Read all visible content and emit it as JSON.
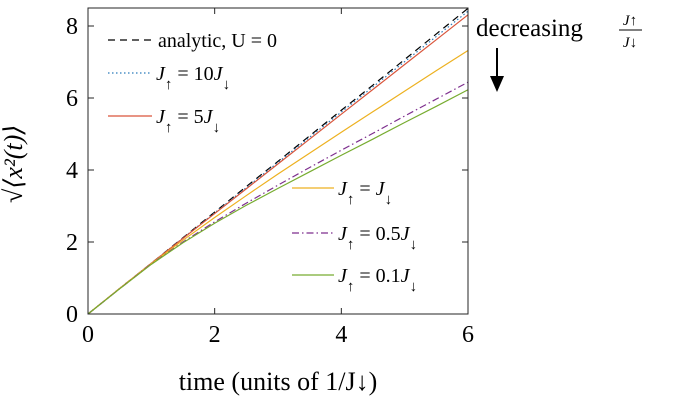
{
  "chart_data": {
    "type": "line",
    "xlabel": "time (units of 1/J↓)",
    "ylabel": "√⟨x²(t)⟩",
    "xlim": [
      0,
      6
    ],
    "ylim": [
      0,
      8.5
    ],
    "xticks": [
      0,
      2,
      4,
      6
    ],
    "yticks": [
      0,
      2,
      4,
      6,
      8
    ],
    "x_tick_labels": [
      "0",
      "2",
      "4",
      "6"
    ],
    "y_tick_labels": [
      "0",
      "2",
      "4",
      "6",
      "8"
    ],
    "grid": false,
    "legend_upper_location": "top-left",
    "legend_lower_location": "center-right",
    "x": [
      0,
      0.5,
      1,
      1.5,
      2,
      2.5,
      3,
      3.5,
      4,
      4.5,
      5,
      5.5,
      6
    ],
    "series": [
      {
        "name": "analytic, U = 0",
        "legend": {
          "a": "analytic, U = 0"
        },
        "color": "#000000",
        "dash": "dashed",
        "values": [
          0,
          0.71,
          1.41,
          2.12,
          2.83,
          3.54,
          4.24,
          4.95,
          5.66,
          6.36,
          7.07,
          7.78,
          8.49
        ]
      },
      {
        "name": "J↑ = 10J↓",
        "legend": {
          "a": "J",
          "b": "↑",
          "c": " = 10",
          "d": "J",
          "e": "↓"
        },
        "color": "#2b7bba",
        "dash": "dotted",
        "values": [
          0,
          0.71,
          1.41,
          2.11,
          2.81,
          3.51,
          4.21,
          4.91,
          5.61,
          6.31,
          7.01,
          7.71,
          8.41
        ]
      },
      {
        "name": "J↑ = 5J↓",
        "legend": {
          "a": "J",
          "b": "↑",
          "c": " = 5",
          "d": "J",
          "e": "↓"
        },
        "color": "#d9553b",
        "dash": "solid",
        "values": [
          0,
          0.71,
          1.41,
          2.1,
          2.79,
          3.48,
          4.17,
          4.86,
          5.55,
          6.24,
          6.93,
          7.62,
          8.31
        ]
      },
      {
        "name": "J↑ = J↓",
        "legend": {
          "a": "J",
          "b": "↑",
          "c": " = ",
          "d": "J",
          "e": "↓"
        },
        "color": "#edb120",
        "dash": "solid",
        "values": [
          0,
          0.71,
          1.4,
          2.05,
          2.68,
          3.29,
          3.89,
          4.47,
          5.05,
          5.62,
          6.19,
          6.76,
          7.32
        ]
      },
      {
        "name": "J↑ = 0.5J↓",
        "legend": {
          "a": "J",
          "b": "↑",
          "c": " = 0.5",
          "d": "J",
          "e": "↓"
        },
        "color": "#7e2f8e",
        "dash": "dashdot",
        "values": [
          0,
          0.7,
          1.39,
          2.0,
          2.56,
          3.08,
          3.58,
          4.07,
          4.55,
          5.02,
          5.5,
          5.97,
          6.44
        ]
      },
      {
        "name": "J↑ = 0.1J↓",
        "legend": {
          "a": "J",
          "b": "↑",
          "c": " = 0.1",
          "d": "J",
          "e": "↓"
        },
        "color": "#77ac30",
        "dash": "solid",
        "values": [
          0,
          0.7,
          1.38,
          1.98,
          2.52,
          3.02,
          3.49,
          3.95,
          4.41,
          4.86,
          5.32,
          5.77,
          6.23
        ]
      }
    ],
    "annotation": {
      "text": "decreasing",
      "fraction_num": "J↑",
      "fraction_den": "J↓",
      "arrow": "down"
    }
  }
}
